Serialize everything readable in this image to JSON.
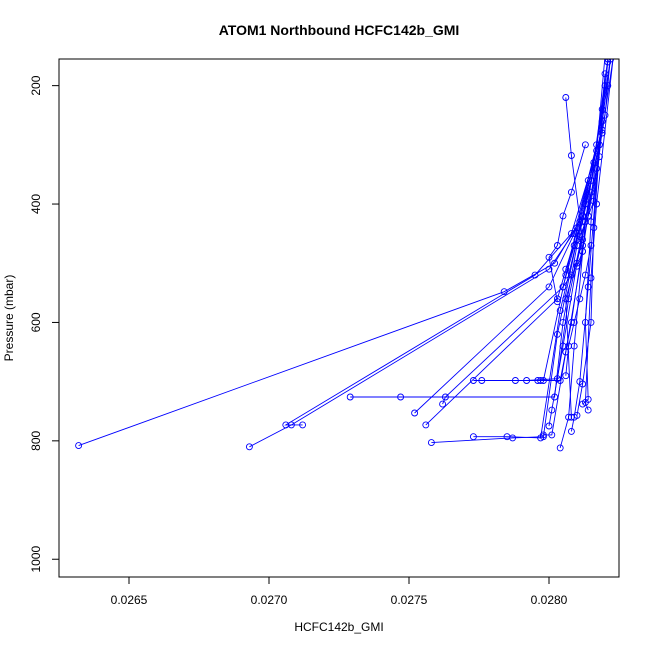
{
  "chart_data": {
    "type": "line",
    "title": "ATOM1 Northbound HCFC142b_GMI",
    "xlabel": "HCFC142b_GMI",
    "ylabel": "Pressure (mbar)",
    "xlim": [
      0.02625,
      0.02825
    ],
    "ylim": [
      1030,
      155
    ],
    "y_inverted": true,
    "x_ticks": [
      0.0265,
      0.027,
      0.0275,
      0.028
    ],
    "x_tick_labels": [
      "0.0265",
      "0.0270",
      "0.0275",
      "0.0280"
    ],
    "y_ticks": [
      200,
      400,
      600,
      800,
      1000
    ],
    "y_tick_labels": [
      "200",
      "400",
      "600",
      "800",
      "1000"
    ],
    "grid": false,
    "legend": "none",
    "line_color": "#0000ff",
    "marker": "open-circle",
    "series": [
      {
        "profiles": [
          [
            [
              0.02632,
              808
            ],
            [
              0.02784,
              548
            ],
            [
              0.02802,
              500
            ],
            [
              0.02812,
              420
            ],
            [
              0.02818,
              300
            ],
            [
              0.02822,
              150
            ]
          ],
          [
            [
              0.02693,
              810
            ],
            [
              0.02708,
              773
            ],
            [
              0.028,
              510
            ],
            [
              0.0281,
              440
            ],
            [
              0.02816,
              330
            ],
            [
              0.02821,
              155
            ]
          ],
          [
            [
              0.02712,
              773
            ],
            [
              0.02706,
              773
            ],
            [
              0.02795,
              520
            ],
            [
              0.02808,
              450
            ],
            [
              0.02817,
              310
            ],
            [
              0.0282,
              150
            ]
          ],
          [
            [
              0.02729,
              726
            ],
            [
              0.02747,
              726
            ],
            [
              0.02802,
              726
            ],
            [
              0.02805,
              600
            ],
            [
              0.0281,
              470
            ],
            [
              0.02819,
              280
            ],
            [
              0.02823,
              150
            ]
          ],
          [
            [
              0.02752,
              753
            ],
            [
              0.028,
              540
            ],
            [
              0.02809,
              450
            ],
            [
              0.02817,
              300
            ],
            [
              0.02822,
              155
            ]
          ],
          [
            [
              0.02756,
              773
            ],
            [
              0.02803,
              560
            ],
            [
              0.02811,
              430
            ],
            [
              0.0282,
              250
            ],
            [
              0.02822,
              150
            ]
          ],
          [
            [
              0.02758,
              803
            ],
            [
              0.02787,
              795
            ],
            [
              0.02798,
              793
            ],
            [
              0.02803,
              620
            ],
            [
              0.0281,
              460
            ],
            [
              0.02818,
              300
            ]
          ],
          [
            [
              0.02762,
              738
            ],
            [
              0.02763,
              726
            ],
            [
              0.02805,
              540
            ],
            [
              0.02812,
              420
            ],
            [
              0.02821,
              200
            ]
          ],
          [
            [
              0.02773,
              793
            ],
            [
              0.02785,
              793
            ],
            [
              0.02797,
              795
            ],
            [
              0.02804,
              580
            ],
            [
              0.02813,
              400
            ]
          ],
          [
            [
              0.02773,
              698
            ],
            [
              0.02776,
              698
            ],
            [
              0.02792,
              698
            ],
            [
              0.02803,
              695
            ],
            [
              0.02807,
              560
            ],
            [
              0.02815,
              380
            ]
          ],
          [
            [
              0.02788,
              698
            ],
            [
              0.02796,
              698
            ],
            [
              0.02798,
              698
            ],
            [
              0.02806,
              520
            ],
            [
              0.02814,
              360
            ]
          ],
          [
            [
              0.02797,
              698
            ],
            [
              0.02804,
              698
            ],
            [
              0.02808,
              600
            ],
            [
              0.02812,
              470
            ],
            [
              0.02818,
              320
            ]
          ],
          [
            [
              0.02798,
              790
            ],
            [
              0.02801,
              790
            ],
            [
              0.02806,
              650
            ],
            [
              0.02812,
              480
            ],
            [
              0.02819,
              260
            ]
          ],
          [
            [
              0.028,
              775
            ],
            [
              0.02801,
              748
            ],
            [
              0.02805,
              640
            ],
            [
              0.0281,
              500
            ],
            [
              0.02817,
              340
            ]
          ],
          [
            [
              0.02804,
              812
            ],
            [
              0.02807,
              760
            ],
            [
              0.02809,
              640
            ],
            [
              0.02813,
              430
            ],
            [
              0.0282,
              200
            ]
          ],
          [
            [
              0.02806,
              220
            ],
            [
              0.02808,
              318
            ],
            [
              0.02812,
              460
            ],
            [
              0.02806,
              560
            ],
            [
              0.02808,
              760
            ]
          ],
          [
            [
              0.02808,
              784
            ],
            [
              0.02809,
              760
            ],
            [
              0.02811,
              700
            ],
            [
              0.02814,
              540
            ],
            [
              0.02819,
              240
            ]
          ],
          [
            [
              0.0281,
              757
            ],
            [
              0.02812,
              704
            ],
            [
              0.02815,
              600
            ],
            [
              0.02816,
              440
            ],
            [
              0.0282,
              180
            ]
          ],
          [
            [
              0.02812,
              738
            ],
            [
              0.02814,
              730
            ],
            [
              0.02813,
              600
            ],
            [
              0.02815,
              430
            ],
            [
              0.02821,
              160
            ]
          ],
          [
            [
              0.02814,
              748
            ],
            [
              0.02813,
              735
            ],
            [
              0.02815,
              525
            ],
            [
              0.02817,
              400
            ],
            [
              0.02823,
              150
            ]
          ],
          [
            [
              0.02803,
              565
            ],
            [
              0.028,
              490
            ],
            [
              0.02803,
              470
            ],
            [
              0.02805,
              420
            ],
            [
              0.02808,
              380
            ],
            [
              0.02813,
              300
            ]
          ],
          [
            [
              0.0281,
              505
            ],
            [
              0.02812,
              480
            ],
            [
              0.02811,
              455
            ],
            [
              0.02814,
              420
            ],
            [
              0.02816,
              395
            ],
            [
              0.02819,
              275
            ]
          ],
          [
            [
              0.02805,
              540
            ],
            [
              0.02808,
              520
            ],
            [
              0.02806,
              510
            ],
            [
              0.02809,
              470
            ],
            [
              0.02812,
              430
            ],
            [
              0.02815,
              360
            ]
          ],
          [
            [
              0.02806,
              690
            ],
            [
              0.02807,
              640
            ],
            [
              0.02809,
              600
            ],
            [
              0.02811,
              560
            ],
            [
              0.02813,
              520
            ],
            [
              0.02815,
              470
            ]
          ]
        ]
      }
    ]
  }
}
